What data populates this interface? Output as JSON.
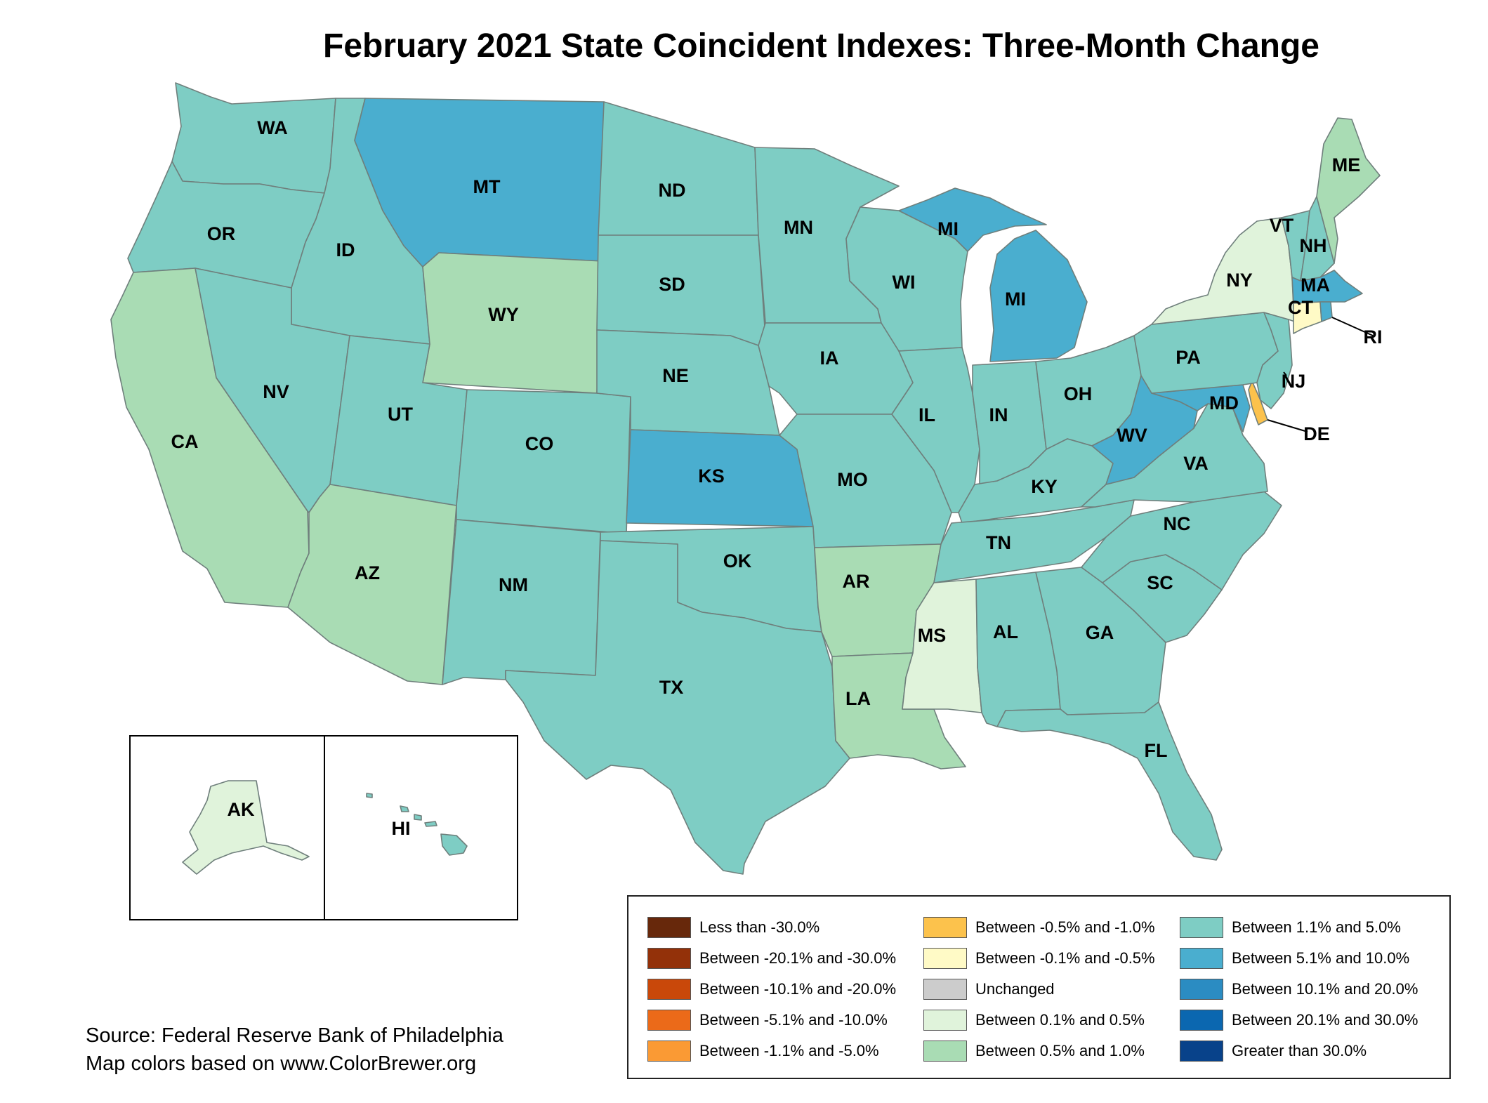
{
  "title": "February 2021 State Coincident Indexes: Three-Month Change",
  "source_lines": [
    "Source: Federal Reserve Bank of Philadelphia",
    "Map colors based on www.ColorBrewer.org"
  ],
  "colors": {
    "c1": "#7ecdc4",
    "c2": "#4aaecf",
    "c3": "#a9dcb4",
    "c4": "#e0f3db",
    "c5": "#fffac6",
    "c6": "#fcc24c"
  },
  "states": [
    {
      "abbr": "WA",
      "cls": "c1"
    },
    {
      "abbr": "OR",
      "cls": "c1"
    },
    {
      "abbr": "CA",
      "cls": "c3"
    },
    {
      "abbr": "ID",
      "cls": "c1"
    },
    {
      "abbr": "NV",
      "cls": "c1"
    },
    {
      "abbr": "MT",
      "cls": "c2"
    },
    {
      "abbr": "WY",
      "cls": "c3"
    },
    {
      "abbr": "UT",
      "cls": "c1"
    },
    {
      "abbr": "AZ",
      "cls": "c3"
    },
    {
      "abbr": "CO",
      "cls": "c1"
    },
    {
      "abbr": "NM",
      "cls": "c1"
    },
    {
      "abbr": "ND",
      "cls": "c1"
    },
    {
      "abbr": "SD",
      "cls": "c1"
    },
    {
      "abbr": "NE",
      "cls": "c1"
    },
    {
      "abbr": "KS",
      "cls": "c2"
    },
    {
      "abbr": "OK",
      "cls": "c1"
    },
    {
      "abbr": "TX",
      "cls": "c1"
    },
    {
      "abbr": "MN",
      "cls": "c1"
    },
    {
      "abbr": "IA",
      "cls": "c1"
    },
    {
      "abbr": "MO",
      "cls": "c1"
    },
    {
      "abbr": "AR",
      "cls": "c3"
    },
    {
      "abbr": "LA",
      "cls": "c3"
    },
    {
      "abbr": "WI",
      "cls": "c1"
    },
    {
      "abbr": "IL",
      "cls": "c1"
    },
    {
      "abbr": "MI",
      "cls": "c2"
    },
    {
      "abbr": "IN",
      "cls": "c1"
    },
    {
      "abbr": "OH",
      "cls": "c1"
    },
    {
      "abbr": "KY",
      "cls": "c1"
    },
    {
      "abbr": "TN",
      "cls": "c1"
    },
    {
      "abbr": "MS",
      "cls": "c4"
    },
    {
      "abbr": "AL",
      "cls": "c1"
    },
    {
      "abbr": "GA",
      "cls": "c1"
    },
    {
      "abbr": "FL",
      "cls": "c1"
    },
    {
      "abbr": "SC",
      "cls": "c1"
    },
    {
      "abbr": "NC",
      "cls": "c1"
    },
    {
      "abbr": "VA",
      "cls": "c1"
    },
    {
      "abbr": "WV",
      "cls": "c2"
    },
    {
      "abbr": "MD",
      "cls": "c2"
    },
    {
      "abbr": "DE",
      "cls": "c6"
    },
    {
      "abbr": "PA",
      "cls": "c1"
    },
    {
      "abbr": "NJ",
      "cls": "c1"
    },
    {
      "abbr": "NY",
      "cls": "c4"
    },
    {
      "abbr": "CT",
      "cls": "c5"
    },
    {
      "abbr": "RI",
      "cls": "c2"
    },
    {
      "abbr": "MA",
      "cls": "c2"
    },
    {
      "abbr": "VT",
      "cls": "c1"
    },
    {
      "abbr": "NH",
      "cls": "c1"
    },
    {
      "abbr": "ME",
      "cls": "c3"
    },
    {
      "abbr": "AK",
      "cls": "c4"
    },
    {
      "abbr": "HI",
      "cls": "c1"
    }
  ],
  "legend": {
    "columns": [
      [
        {
          "label": "Less than -30.0%",
          "color": "#67280b"
        },
        {
          "label": "Between -20.1% and -30.0%",
          "color": "#933109"
        },
        {
          "label": "Between -10.1% and -20.0%",
          "color": "#c9480a"
        },
        {
          "label": "Between -5.1% and -10.0%",
          "color": "#eb6a19"
        },
        {
          "label": "Between -1.1% and -5.0%",
          "color": "#fa9a34"
        }
      ],
      [
        {
          "label": "Between -0.5% and -1.0%",
          "color": "#fcc24c"
        },
        {
          "label": "Between -0.1% and -0.5%",
          "color": "#fffac6"
        },
        {
          "label": "Unchanged",
          "color": "#cccccc"
        },
        {
          "label": "Between 0.1% and 0.5%",
          "color": "#e0f3db"
        },
        {
          "label": "Between 0.5% and 1.0%",
          "color": "#a9dcb4"
        }
      ],
      [
        {
          "label": "Between 1.1% and 5.0%",
          "color": "#7ecdc4"
        },
        {
          "label": "Between 5.1% and 10.0%",
          "color": "#4aaecf"
        },
        {
          "label": "Between 10.1% and 20.0%",
          "color": "#2b8cc2"
        },
        {
          "label": "Between 20.1% and 30.0%",
          "color": "#0b67b0"
        },
        {
          "label": "Greater than 30.0%",
          "color": "#08428a"
        }
      ]
    ]
  }
}
